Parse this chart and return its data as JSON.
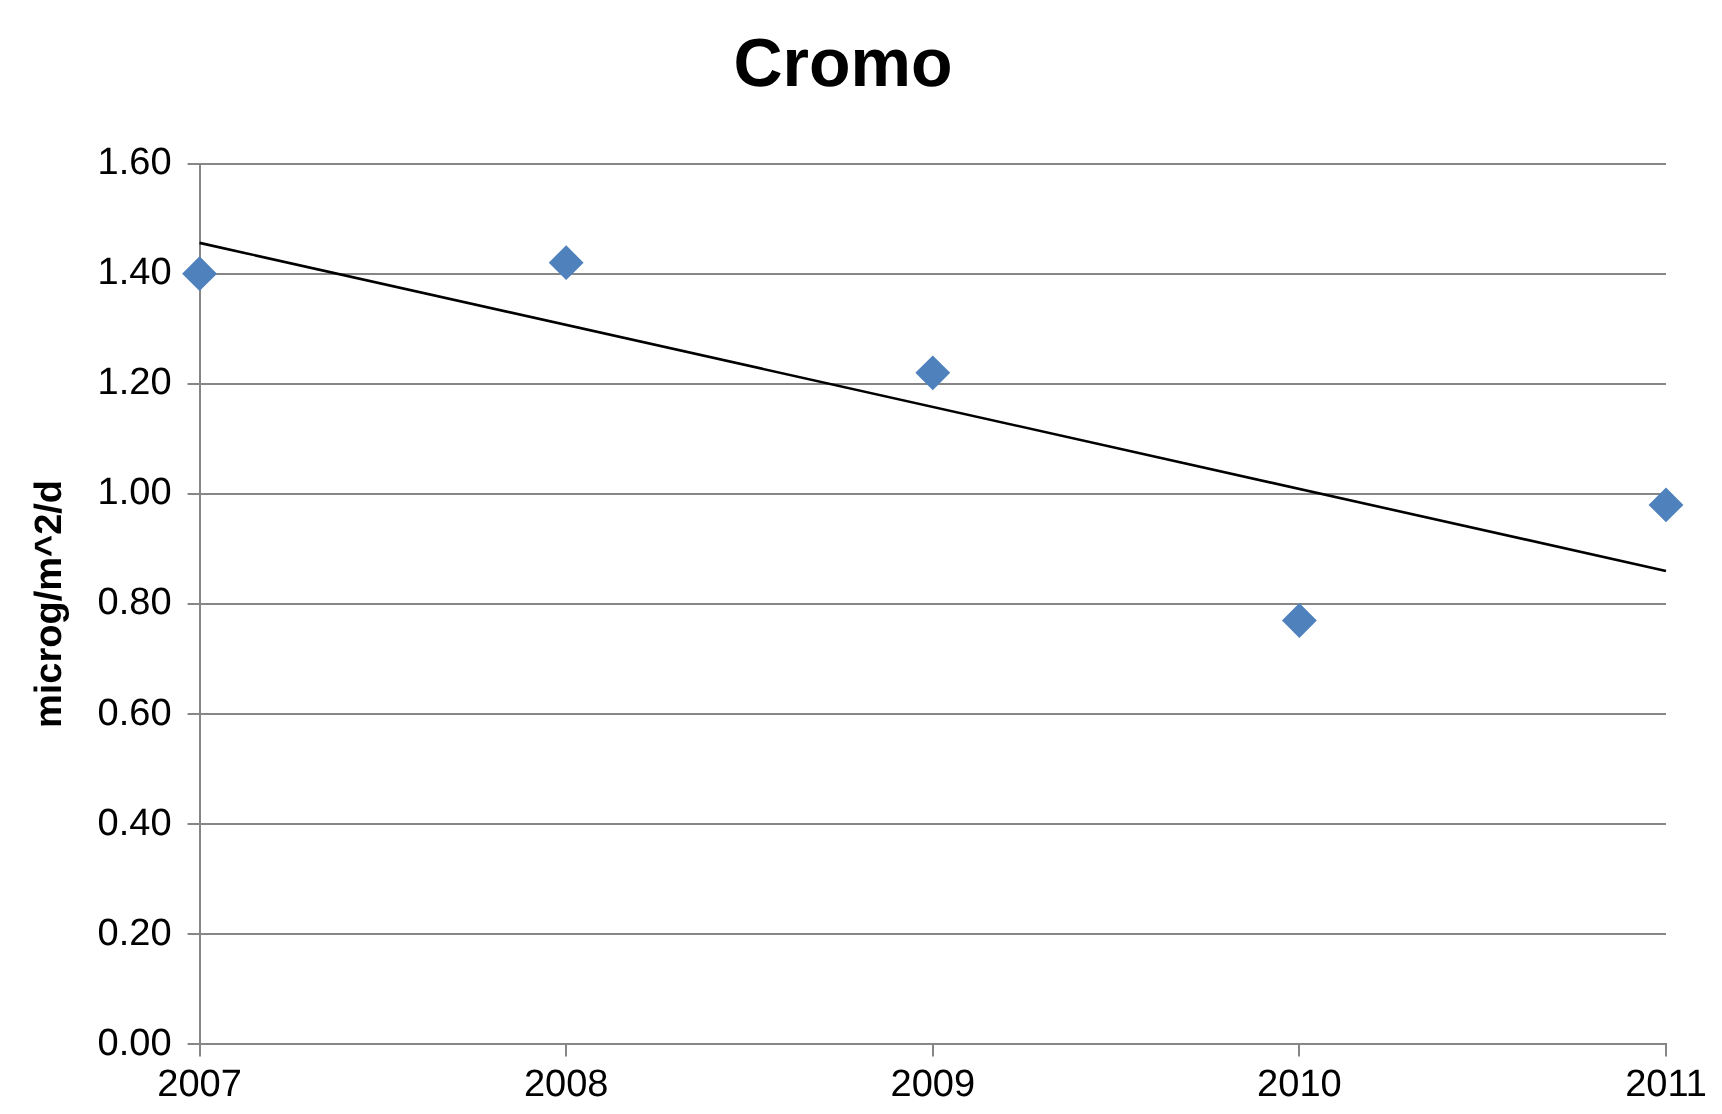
{
  "chart_data": {
    "type": "scatter",
    "title": "Cromo",
    "ylabel": "microg/m^2/d",
    "x": [
      2007,
      2008,
      2009,
      2010,
      2011
    ],
    "series": [
      {
        "color": "#4f81bd",
        "marker": "diamond",
        "values": [
          1.4,
          1.42,
          1.22,
          0.77,
          0.98
        ]
      },
      {
        "type": "line",
        "color": "#000000",
        "marker": "none",
        "x": [
          2007,
          2011
        ],
        "values": [
          1.456,
          0.86
        ]
      }
    ],
    "xlim": [
      2007,
      2011
    ],
    "xticks": [
      2007,
      2008,
      2009,
      2010,
      2011
    ],
    "ylim": [
      0,
      1.6
    ],
    "yticks": [
      {
        "value": 0,
        "label": "0.00"
      },
      {
        "value": 0.2,
        "label": "0.20"
      },
      {
        "value": 0.4,
        "label": "0.40"
      },
      {
        "value": 0.6,
        "label": "0.60"
      },
      {
        "value": 0.8,
        "label": "0.80"
      },
      {
        "value": 1.0,
        "label": "1.00"
      },
      {
        "value": 1.2,
        "label": "1.20"
      },
      {
        "value": 1.4,
        "label": "1.40"
      },
      {
        "value": 1.6,
        "label": "1.60"
      }
    ],
    "grid": "y",
    "legend": false
  }
}
